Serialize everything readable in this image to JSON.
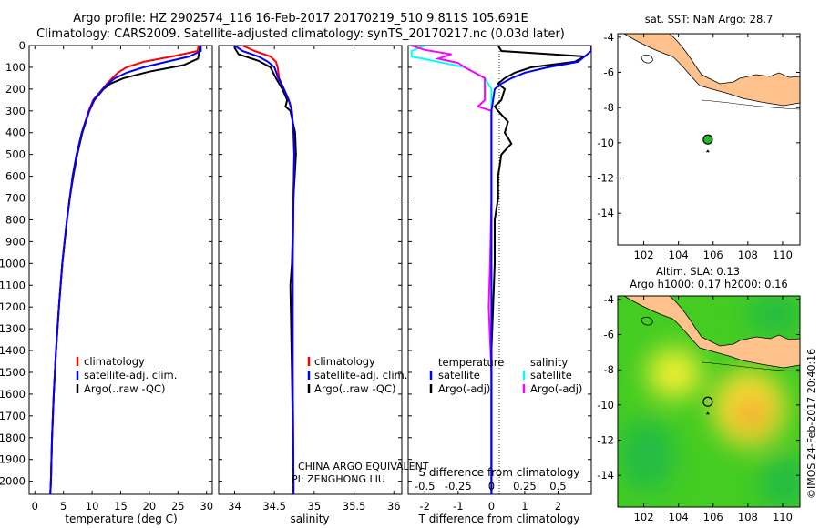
{
  "header": {
    "line1": "Argo profile: HZ 2902574_116 16-Feb-2017 20170219_510 9.811S 105.691E",
    "line2": "Climatology: CARS2009. Satellite-adjusted climatology: synTS_20170217.nc (0.03d later)"
  },
  "colors": {
    "climatology": "#ff0000",
    "satellite": "#0000ff",
    "argo": "#000000",
    "satellite_s": "#00ffff",
    "argo_s": "#ff00ff",
    "land": "#ffc28c",
    "marker": "#22bb22"
  },
  "credit": "©IMOS 24-Feb-2017 20:40:16",
  "chart_data": [
    {
      "id": "temperature_profile",
      "type": "line",
      "xlabel": "temperature (deg C)",
      "xlim": [
        -1,
        31
      ],
      "xticks": [
        0,
        5,
        10,
        15,
        20,
        25,
        30
      ],
      "ylim": [
        2060,
        0
      ],
      "yticks": [
        0,
        100,
        200,
        300,
        400,
        500,
        600,
        700,
        800,
        900,
        1000,
        1100,
        1200,
        1300,
        1400,
        1500,
        1600,
        1700,
        1800,
        1900,
        2000
      ],
      "legend": [
        "climatology",
        "satellite-adj. clim.",
        "Argo(..raw -QC)"
      ],
      "series": [
        {
          "name": "climatology",
          "depth": [
            0,
            25,
            50,
            75,
            100,
            125,
            150,
            175,
            200,
            250,
            300,
            400,
            500,
            600,
            700,
            800,
            900,
            1000,
            1200,
            1400,
            1600,
            1800,
            2000,
            2060
          ],
          "values": [
            28.6,
            28.4,
            24,
            19,
            16,
            14.5,
            13.5,
            12.6,
            11.8,
            10.2,
            9.4,
            8.2,
            7.3,
            6.6,
            6.1,
            5.6,
            5.2,
            4.8,
            4.2,
            3.7,
            3.3,
            3.0,
            2.8,
            2.7
          ]
        },
        {
          "name": "satellite-adj. clim.",
          "depth": [
            0,
            25,
            50,
            75,
            100,
            125,
            150,
            175,
            200,
            250,
            300,
            400,
            500,
            600,
            700,
            800,
            900,
            1000,
            1200,
            1400,
            1600,
            1800,
            2000,
            2060
          ],
          "values": [
            29.0,
            29.0,
            27,
            23,
            19,
            16,
            14,
            12.8,
            11.9,
            10.3,
            9.5,
            8.2,
            7.3,
            6.6,
            6.1,
            5.6,
            5.2,
            4.8,
            4.2,
            3.7,
            3.3,
            3.0,
            2.8,
            2.7
          ]
        },
        {
          "name": "Argo(..raw -QC)",
          "depth": [
            0,
            10,
            30,
            60,
            90,
            120,
            150,
            175,
            200,
            250,
            300,
            400,
            500,
            600,
            700,
            800,
            900,
            1000,
            1200,
            1400,
            1600,
            1800,
            2000,
            2060
          ],
          "values": [
            28.8,
            28.8,
            28.7,
            28.5,
            26,
            20,
            15.5,
            13.2,
            12,
            10.4,
            9.5,
            8.3,
            7.4,
            6.7,
            6.1,
            5.6,
            5.2,
            4.8,
            4.2,
            3.7,
            3.3,
            3.0,
            2.8,
            2.7
          ]
        }
      ]
    },
    {
      "id": "salinity_profile",
      "type": "line",
      "xlabel": "salinity",
      "xlim": [
        33.8,
        36.1
      ],
      "xticks": [
        34,
        34.5,
        35,
        35.5,
        36
      ],
      "legend": [
        "climatology",
        "satellite-adj. clim.",
        "Argo(..raw -QC)"
      ],
      "annotations": [
        "CHINA ARGO EQUIVALENT",
        "PI: ZENGHONG LIU"
      ],
      "series": [
        {
          "name": "climatology",
          "depth": [
            0,
            25,
            50,
            75,
            100,
            150,
            200,
            250,
            300,
            400,
            500,
            700,
            1000,
            1500,
            2000,
            2060
          ],
          "values": [
            34.1,
            34.25,
            34.45,
            34.52,
            34.54,
            34.56,
            34.62,
            34.68,
            34.72,
            34.74,
            34.75,
            34.74,
            34.73,
            34.73,
            34.74,
            34.74
          ]
        },
        {
          "name": "satellite-adj. clim.",
          "depth": [
            0,
            25,
            50,
            75,
            100,
            150,
            200,
            250,
            300,
            400,
            500,
            700,
            1000,
            1500,
            2000,
            2060
          ],
          "values": [
            34.0,
            34.1,
            34.3,
            34.42,
            34.5,
            34.55,
            34.62,
            34.68,
            34.72,
            34.74,
            34.75,
            34.74,
            34.73,
            34.73,
            34.74,
            34.74
          ]
        },
        {
          "name": "Argo(..raw -QC)",
          "depth": [
            0,
            10,
            40,
            70,
            100,
            150,
            200,
            250,
            280,
            300,
            400,
            500,
            700,
            1000,
            1100,
            1500,
            2000,
            2060
          ],
          "values": [
            34.0,
            34.0,
            34.05,
            34.3,
            34.45,
            34.52,
            34.6,
            34.66,
            34.64,
            34.7,
            34.76,
            34.77,
            34.74,
            34.72,
            34.7,
            34.72,
            34.74,
            34.74
          ]
        }
      ]
    },
    {
      "id": "difference_profile",
      "type": "line",
      "xlabel": "T difference from climatology",
      "xlabel_top": "S difference from climatology",
      "xlim": [
        -2.5,
        3
      ],
      "xticks": [
        -2,
        -1,
        0,
        1,
        2
      ],
      "s_xticks": [
        -0.5,
        -0.25,
        0,
        0.25,
        0.5
      ],
      "legend_t": {
        "title": "temperature",
        "items": [
          "satellite",
          "Argo(-adj)"
        ]
      },
      "legend_s": {
        "title": "salinity",
        "items": [
          "satellite",
          "Argo(-adj)"
        ]
      },
      "series": [
        {
          "name": "temperature satellite",
          "depth": [
            0,
            25,
            50,
            75,
            100,
            125,
            150,
            175,
            200,
            300,
            500,
            1000,
            1500,
            2000,
            2060
          ],
          "values": [
            3.0,
            3.0,
            2.8,
            2.6,
            1.7,
            1.0,
            0.6,
            0.3,
            0.1,
            0.0,
            0.0,
            0.0,
            0.0,
            0.0,
            0.0
          ]
        },
        {
          "name": "temperature Argo(-adj)",
          "depth": [
            0,
            25,
            50,
            75,
            100,
            125,
            150,
            175,
            200,
            250,
            280,
            300,
            350,
            400,
            450,
            500,
            600,
            700,
            800,
            1000,
            1200,
            1400,
            1600,
            1800,
            2000,
            2060
          ],
          "values": [
            0.2,
            0.3,
            2.8,
            2.5,
            1.2,
            0.7,
            0.4,
            0.2,
            0.4,
            0.3,
            0.1,
            0.2,
            0.5,
            0.4,
            0.6,
            0.3,
            0.2,
            0.2,
            0.1,
            0.1,
            0.05,
            0.0,
            0.0,
            0.0,
            0.0,
            0.0
          ]
        },
        {
          "name": "salinity satellite",
          "depth": [
            0,
            25,
            50,
            75,
            100,
            150,
            200,
            300,
            500,
            700,
            1000,
            1500,
            2000,
            2060
          ],
          "values": [
            -0.5,
            -0.6,
            -0.6,
            -0.4,
            -0.2,
            -0.05,
            0.0,
            0.0,
            0.0,
            0.0,
            0.0,
            0.0,
            0.0,
            0.0
          ]
        },
        {
          "name": "salinity Argo(-adj)",
          "depth": [
            0,
            20,
            40,
            60,
            80,
            100,
            150,
            200,
            250,
            280,
            300,
            400,
            500,
            700,
            1000,
            1200,
            1500,
            1800,
            2000,
            2060
          ],
          "values": [
            -0.6,
            -0.5,
            -0.3,
            -0.4,
            -0.25,
            -0.2,
            -0.05,
            -0.05,
            -0.05,
            -0.1,
            0.0,
            0.0,
            0.0,
            0.0,
            -0.01,
            -0.02,
            0.0,
            0.0,
            0.0,
            0.0
          ]
        }
      ]
    },
    {
      "id": "sst_map",
      "type": "map",
      "title": "sat. SST: NaN Argo: 28.7",
      "xlim": [
        100.5,
        111
      ],
      "ylim": [
        -15.8,
        -3.8
      ],
      "xticks": [
        102,
        104,
        106,
        108,
        110
      ],
      "yticks": [
        -4,
        -6,
        -8,
        -10,
        -12,
        -14
      ],
      "argo_position": {
        "lon": 105.691,
        "lat": -9.811
      }
    },
    {
      "id": "sla_map",
      "type": "map",
      "title_line1": "Altim. SLA: 0.13",
      "title_line2": "Argo h1000: 0.17 h2000: 0.16",
      "xlim": [
        100.5,
        111
      ],
      "ylim": [
        -15.8,
        -3.8
      ],
      "xticks": [
        102,
        104,
        106,
        108,
        110
      ],
      "yticks": [
        -4,
        -6,
        -8,
        -10,
        -12,
        -14
      ],
      "argo_position": {
        "lon": 105.691,
        "lat": -9.811
      }
    }
  ]
}
